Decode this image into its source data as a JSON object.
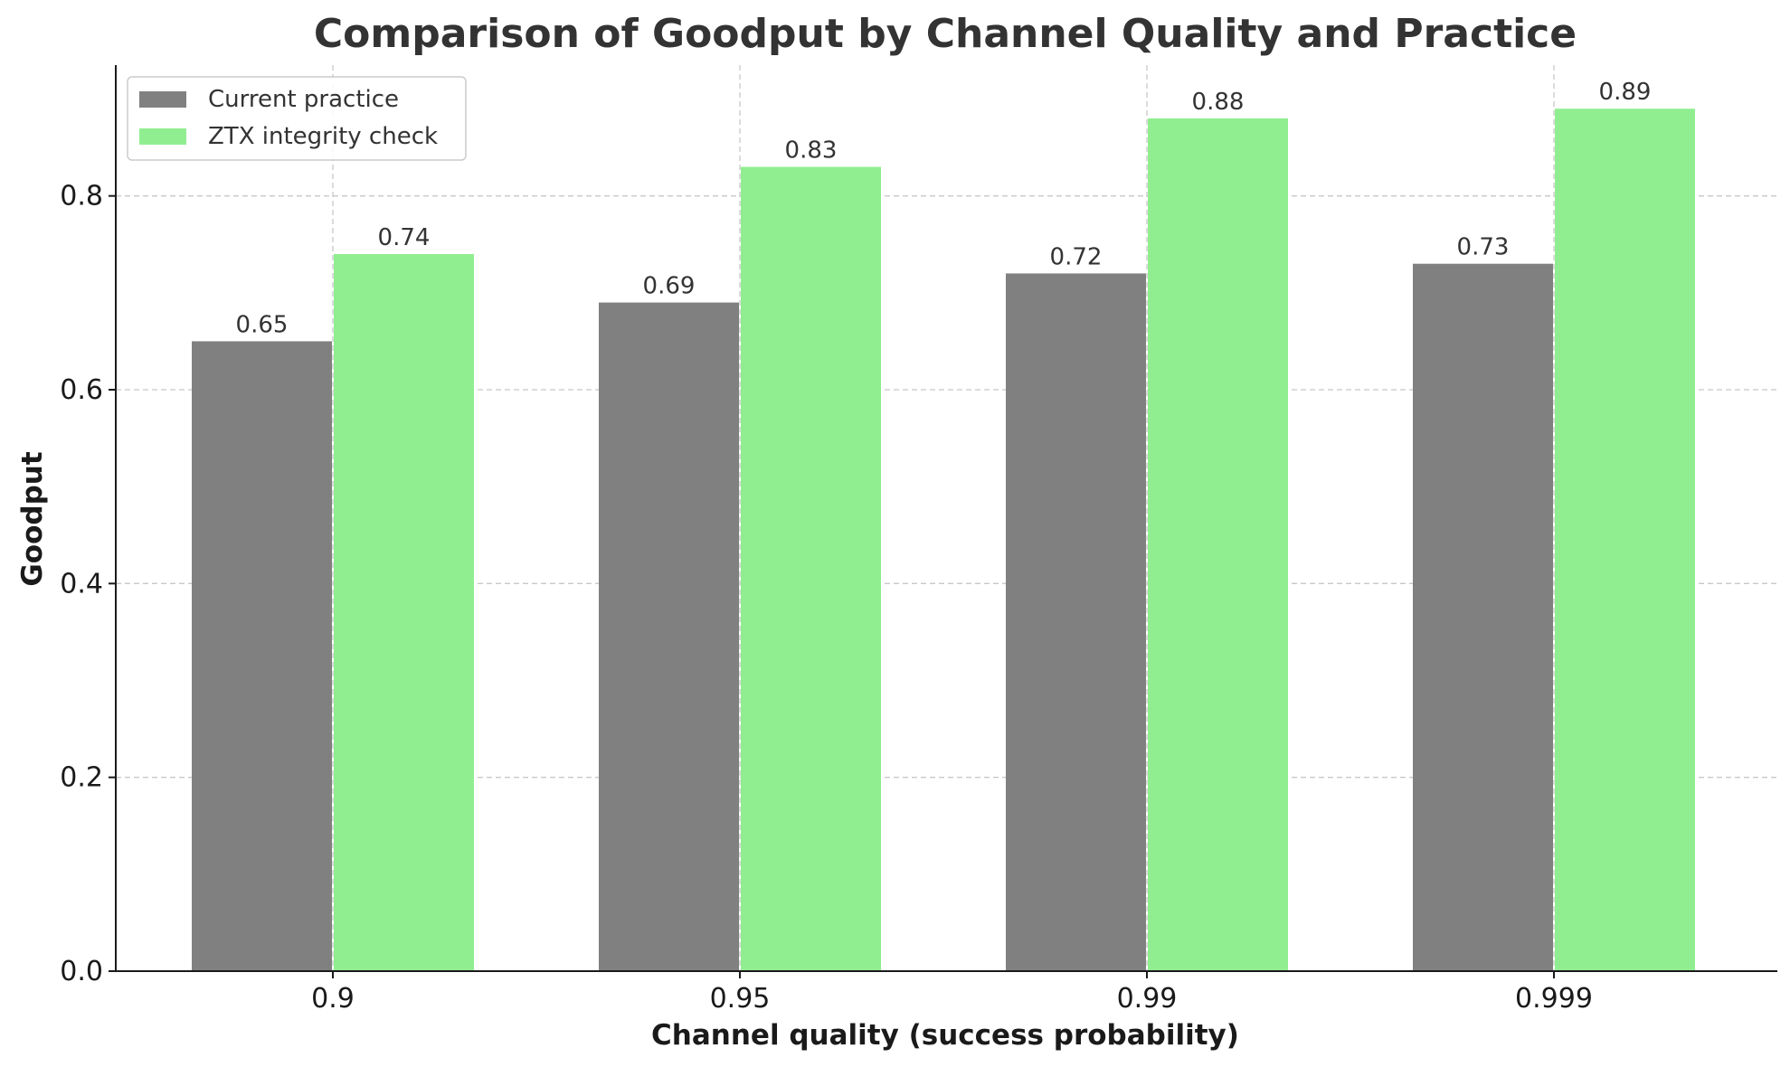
{
  "chart_data": {
    "type": "bar",
    "title": "Comparison of Goodput by Channel Quality and Practice",
    "xlabel": "Channel quality (success probability)",
    "ylabel": "Goodput",
    "categories": [
      "0.9",
      "0.95",
      "0.99",
      "0.999"
    ],
    "series": [
      {
        "name": "Current practice",
        "values": [
          0.65,
          0.69,
          0.72,
          0.73
        ],
        "color": "#808080"
      },
      {
        "name": "ZTX integrity check",
        "values": [
          0.74,
          0.83,
          0.88,
          0.89
        ],
        "color": "#90ee90"
      }
    ],
    "ylim": [
      0,
      0.935
    ],
    "yticks": [
      "0.0",
      "0.2",
      "0.4",
      "0.6",
      "0.8"
    ],
    "grid": true,
    "legend_position": "top-left"
  }
}
